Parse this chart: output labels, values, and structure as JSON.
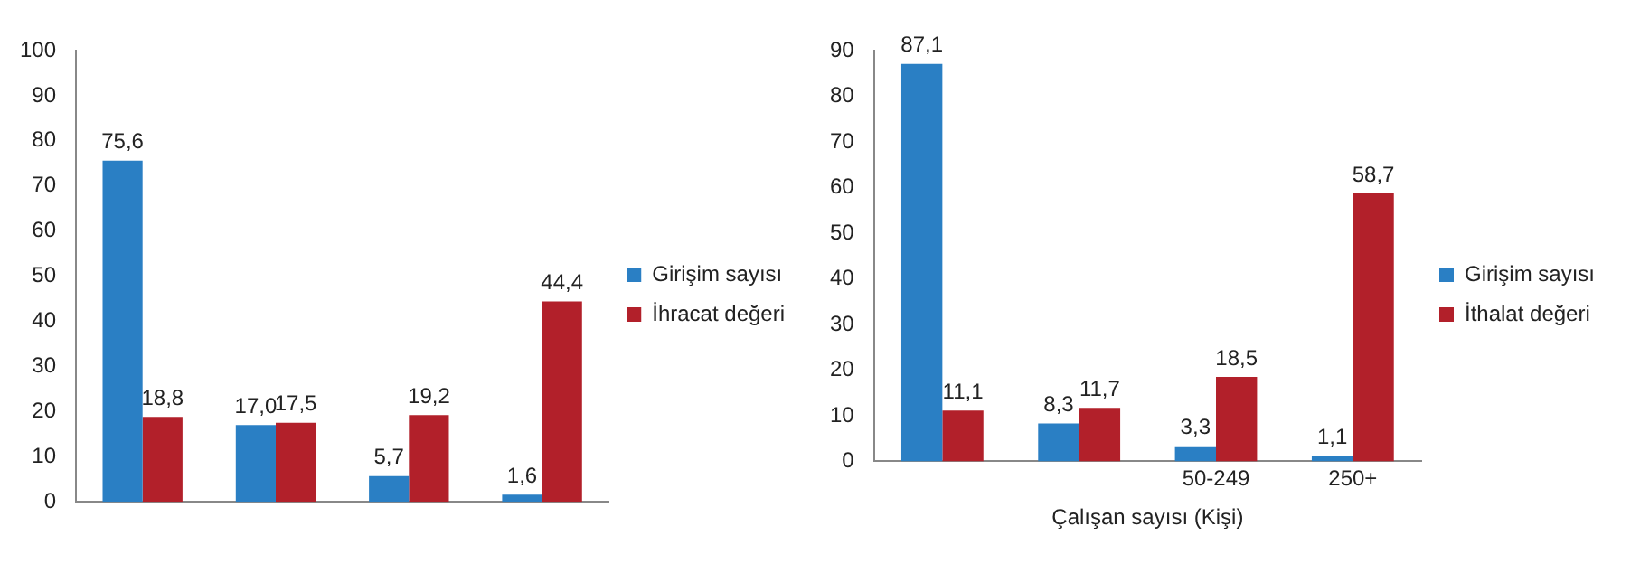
{
  "chart_data": [
    {
      "type": "bar",
      "categories": [
        null,
        null,
        null,
        null
      ],
      "ylim": [
        0,
        100
      ],
      "yticks": [
        0,
        10,
        20,
        30,
        40,
        50,
        60,
        70,
        80,
        90,
        100
      ],
      "legend": "right",
      "series": [
        {
          "name": "Girişim sayısı",
          "color": "#2a7fc4",
          "values": [
            75.6,
            17.0,
            5.7,
            1.6
          ],
          "value_labels": [
            "75,6",
            "17,0",
            "5,7",
            "1,6"
          ]
        },
        {
          "name": "İhracat değeri",
          "color": "#b2202a",
          "values": [
            18.8,
            17.5,
            19.2,
            44.4
          ],
          "value_labels": [
            "18,8",
            "17,5",
            "19,2",
            "44,4"
          ]
        }
      ]
    },
    {
      "type": "bar",
      "categories": [
        null,
        null,
        "50-249",
        "250+"
      ],
      "xlabel": "Çalışan sayısı (Kişi)",
      "ylim": [
        0,
        90
      ],
      "yticks": [
        0,
        10,
        20,
        30,
        40,
        50,
        60,
        70,
        80,
        90
      ],
      "legend": "right",
      "series": [
        {
          "name": "Girişim sayısı",
          "color": "#2a7fc4",
          "values": [
            87.1,
            8.3,
            3.3,
            1.1
          ],
          "value_labels": [
            "87,1",
            "8,3",
            "3,3",
            "1,1"
          ]
        },
        {
          "name": "İthalat değeri",
          "color": "#b2202a",
          "values": [
            11.1,
            11.7,
            18.5,
            58.7
          ],
          "value_labels": [
            "11,1",
            "11,7",
            "18,5",
            "58,7"
          ]
        }
      ]
    }
  ]
}
